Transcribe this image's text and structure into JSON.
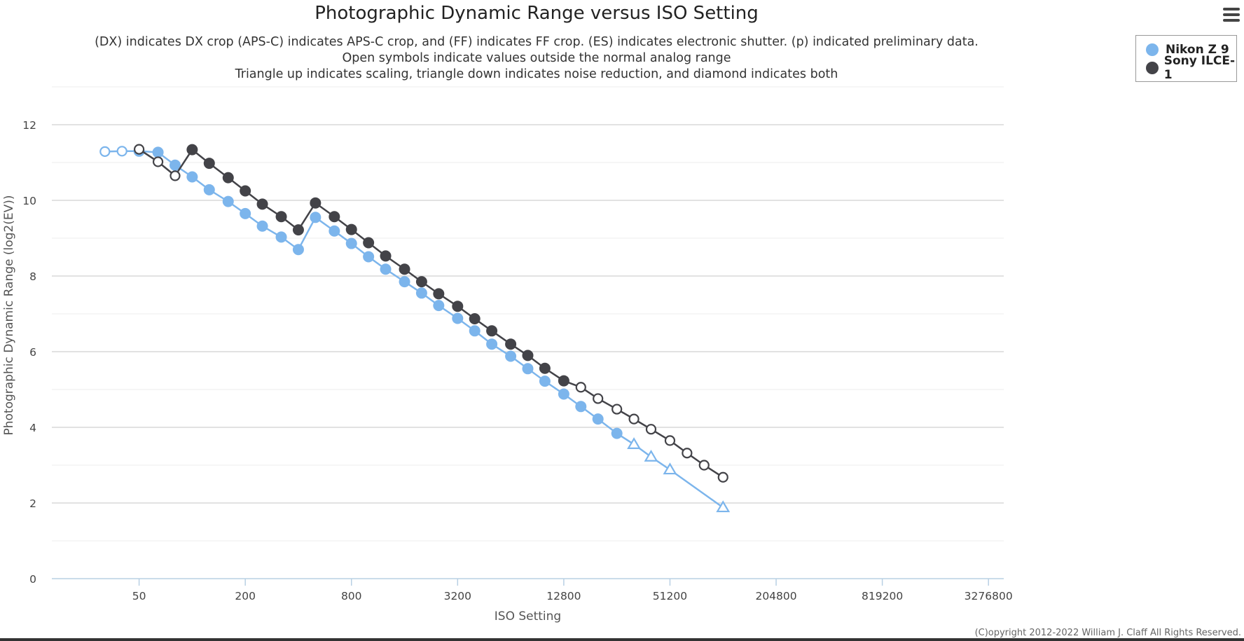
{
  "chart_data": {
    "type": "line",
    "title": "Photographic Dynamic Range versus ISO Setting",
    "subtitle": [
      "(DX) indicates DX crop (APS-C) indicates APS-C crop, and (FF) indicates FF crop. (ES) indicates electronic shutter. (p) indicated preliminary data.",
      "Open symbols indicate values outside the normal analog range",
      "Triangle up indicates scaling, triangle down indicates noise reduction, and diamond indicates both"
    ],
    "xlabel": "ISO Setting",
    "ylabel": "Photographic Dynamic Range (log2(EV))",
    "x_scale": "log2",
    "xlim": [
      16,
      4000000
    ],
    "ylim": [
      0,
      13
    ],
    "x_ticks": [
      50,
      200,
      800,
      3200,
      12800,
      51200,
      204800,
      819200,
      3276800
    ],
    "x_tick_labels": [
      "50",
      "200",
      "800",
      "3200",
      "12800",
      "51200",
      "204800",
      "819200",
      "3276800"
    ],
    "y_ticks": [
      0,
      2,
      4,
      6,
      8,
      10,
      12
    ],
    "y_tick_labels": [
      "0",
      "2",
      "4",
      "6",
      "8",
      "10",
      "12"
    ],
    "legend_position": "top-right",
    "series": [
      {
        "name": "Nikon Z 9",
        "color": "#7cb5ec",
        "points": [
          {
            "x": 32,
            "y": 11.29,
            "marker": "open"
          },
          {
            "x": 40,
            "y": 11.3,
            "marker": "open"
          },
          {
            "x": 50,
            "y": 11.3,
            "marker": "filled"
          },
          {
            "x": 64,
            "y": 11.27,
            "marker": "filled"
          },
          {
            "x": 80,
            "y": 10.93,
            "marker": "filled"
          },
          {
            "x": 100,
            "y": 10.62,
            "marker": "filled"
          },
          {
            "x": 125,
            "y": 10.28,
            "marker": "filled"
          },
          {
            "x": 160,
            "y": 9.97,
            "marker": "filled"
          },
          {
            "x": 200,
            "y": 9.65,
            "marker": "filled"
          },
          {
            "x": 250,
            "y": 9.32,
            "marker": "filled"
          },
          {
            "x": 320,
            "y": 9.03,
            "marker": "filled"
          },
          {
            "x": 400,
            "y": 8.7,
            "marker": "filled"
          },
          {
            "x": 500,
            "y": 9.55,
            "marker": "filled"
          },
          {
            "x": 640,
            "y": 9.19,
            "marker": "filled"
          },
          {
            "x": 800,
            "y": 8.86,
            "marker": "filled"
          },
          {
            "x": 1000,
            "y": 8.51,
            "marker": "filled"
          },
          {
            "x": 1250,
            "y": 8.18,
            "marker": "filled"
          },
          {
            "x": 1600,
            "y": 7.85,
            "marker": "filled"
          },
          {
            "x": 2000,
            "y": 7.55,
            "marker": "filled"
          },
          {
            "x": 2500,
            "y": 7.22,
            "marker": "filled"
          },
          {
            "x": 3200,
            "y": 6.88,
            "marker": "filled"
          },
          {
            "x": 4000,
            "y": 6.55,
            "marker": "filled"
          },
          {
            "x": 5000,
            "y": 6.2,
            "marker": "filled"
          },
          {
            "x": 6400,
            "y": 5.88,
            "marker": "filled"
          },
          {
            "x": 8000,
            "y": 5.55,
            "marker": "filled"
          },
          {
            "x": 10000,
            "y": 5.22,
            "marker": "filled"
          },
          {
            "x": 12800,
            "y": 4.88,
            "marker": "filled"
          },
          {
            "x": 16000,
            "y": 4.55,
            "marker": "filled"
          },
          {
            "x": 20000,
            "y": 4.22,
            "marker": "filled"
          },
          {
            "x": 25600,
            "y": 3.84,
            "marker": "filled"
          },
          {
            "x": 32000,
            "y": 3.55,
            "marker": "triangle-up"
          },
          {
            "x": 40000,
            "y": 3.22,
            "marker": "triangle-up"
          },
          {
            "x": 51200,
            "y": 2.88,
            "marker": "triangle-up"
          },
          {
            "x": 102400,
            "y": 1.88,
            "marker": "triangle-up"
          }
        ]
      },
      {
        "name": "Sony ILCE-1",
        "color": "#434348",
        "points": [
          {
            "x": 50,
            "y": 11.35,
            "marker": "open"
          },
          {
            "x": 64,
            "y": 11.02,
            "marker": "open"
          },
          {
            "x": 80,
            "y": 10.65,
            "marker": "open"
          },
          {
            "x": 100,
            "y": 11.34,
            "marker": "filled"
          },
          {
            "x": 125,
            "y": 10.98,
            "marker": "filled"
          },
          {
            "x": 160,
            "y": 10.6,
            "marker": "filled"
          },
          {
            "x": 200,
            "y": 10.25,
            "marker": "filled"
          },
          {
            "x": 250,
            "y": 9.9,
            "marker": "filled"
          },
          {
            "x": 320,
            "y": 9.57,
            "marker": "filled"
          },
          {
            "x": 400,
            "y": 9.22,
            "marker": "filled"
          },
          {
            "x": 500,
            "y": 9.93,
            "marker": "filled"
          },
          {
            "x": 640,
            "y": 9.57,
            "marker": "filled"
          },
          {
            "x": 800,
            "y": 9.23,
            "marker": "filled"
          },
          {
            "x": 1000,
            "y": 8.88,
            "marker": "filled"
          },
          {
            "x": 1250,
            "y": 8.53,
            "marker": "filled"
          },
          {
            "x": 1600,
            "y": 8.18,
            "marker": "filled"
          },
          {
            "x": 2000,
            "y": 7.85,
            "marker": "filled"
          },
          {
            "x": 2500,
            "y": 7.53,
            "marker": "filled"
          },
          {
            "x": 3200,
            "y": 7.2,
            "marker": "filled"
          },
          {
            "x": 4000,
            "y": 6.87,
            "marker": "filled"
          },
          {
            "x": 5000,
            "y": 6.55,
            "marker": "filled"
          },
          {
            "x": 6400,
            "y": 6.2,
            "marker": "filled"
          },
          {
            "x": 8000,
            "y": 5.9,
            "marker": "filled"
          },
          {
            "x": 10000,
            "y": 5.56,
            "marker": "filled"
          },
          {
            "x": 12800,
            "y": 5.23,
            "marker": "filled"
          },
          {
            "x": 16000,
            "y": 5.06,
            "marker": "open"
          },
          {
            "x": 20000,
            "y": 4.76,
            "marker": "open"
          },
          {
            "x": 25600,
            "y": 4.48,
            "marker": "open"
          },
          {
            "x": 32000,
            "y": 4.22,
            "marker": "open"
          },
          {
            "x": 40000,
            "y": 3.95,
            "marker": "open"
          },
          {
            "x": 51200,
            "y": 3.65,
            "marker": "open"
          },
          {
            "x": 64000,
            "y": 3.32,
            "marker": "open"
          },
          {
            "x": 80000,
            "y": 3.0,
            "marker": "open"
          },
          {
            "x": 102400,
            "y": 2.68,
            "marker": "open"
          }
        ]
      }
    ]
  },
  "legend": {
    "items": [
      {
        "label": "Nikon Z 9",
        "color": "#7cb5ec"
      },
      {
        "label": "Sony ILCE-1",
        "color": "#434348"
      }
    ]
  },
  "menu": {
    "icon": "hamburger-menu-icon"
  },
  "footer": {
    "copyright": "(C)opyright 2012-2022 William J. Claff All Rights Reserved."
  }
}
